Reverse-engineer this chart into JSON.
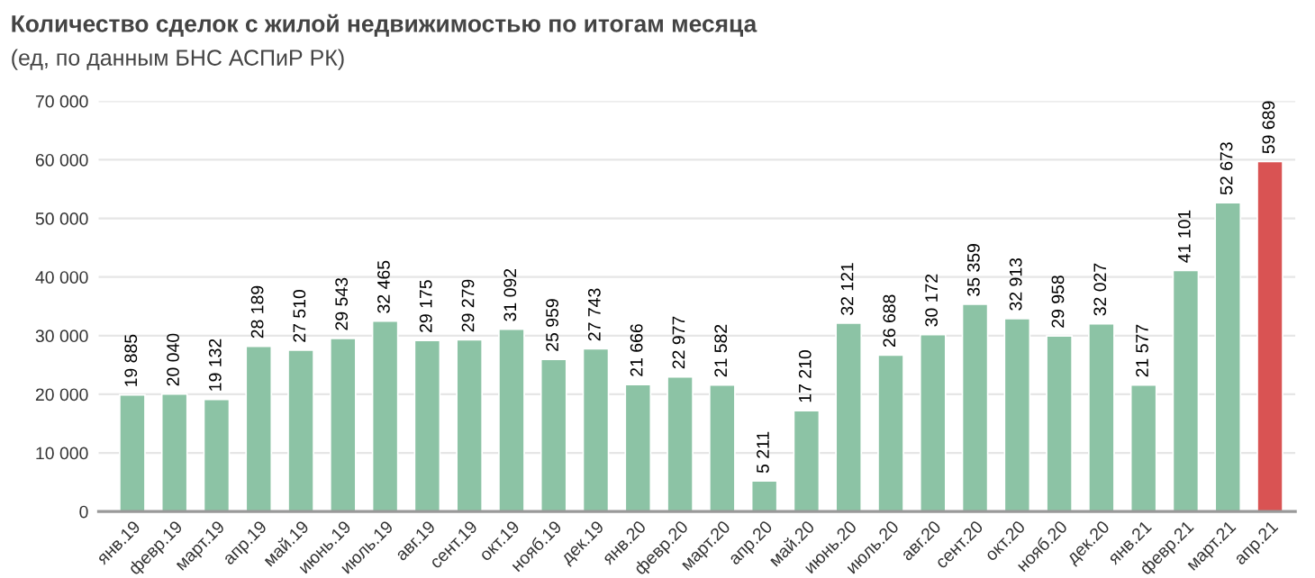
{
  "chart_data": {
    "type": "bar",
    "title": "Количество сделок с жилой недвижимостью по итогам месяца",
    "subtitle": "(ед, по данным БНС АСПиР РК)",
    "categories": [
      "янв.19",
      "февр.19",
      "март.19",
      "апр.19",
      "май.19",
      "июнь.19",
      "июль.19",
      "авг.19",
      "сент.19",
      "окт.19",
      "нояб.19",
      "дек.19",
      "янв.20",
      "февр.20",
      "март.20",
      "апр.20",
      "май.20",
      "июнь.20",
      "июль.20",
      "авг.20",
      "сент.20",
      "окт.20",
      "нояб.20",
      "дек.20",
      "янв.21",
      "февр.21",
      "март.21",
      "апр.21"
    ],
    "values": [
      19885,
      20040,
      19132,
      28189,
      27510,
      29543,
      32465,
      29175,
      29279,
      31092,
      25959,
      27743,
      21666,
      22977,
      21582,
      5211,
      17210,
      32121,
      26688,
      30172,
      35359,
      32913,
      29958,
      32027,
      21577,
      41101,
      52673,
      59689
    ],
    "value_labels": [
      "19 885",
      "20 040",
      "19 132",
      "28 189",
      "27 510",
      "29 543",
      "32 465",
      "29 175",
      "29 279",
      "31 092",
      "25 959",
      "27 743",
      "21 666",
      "22 977",
      "21 582",
      "5 211",
      "17 210",
      "32 121",
      "26 688",
      "30 172",
      "35 359",
      "32 913",
      "29 958",
      "32 027",
      "21 577",
      "41 101",
      "52 673",
      "59 689"
    ],
    "colors": [
      "#8cc3a5",
      "#8cc3a5",
      "#8cc3a5",
      "#8cc3a5",
      "#8cc3a5",
      "#8cc3a5",
      "#8cc3a5",
      "#8cc3a5",
      "#8cc3a5",
      "#8cc3a5",
      "#8cc3a5",
      "#8cc3a5",
      "#8cc3a5",
      "#8cc3a5",
      "#8cc3a5",
      "#8cc3a5",
      "#8cc3a5",
      "#8cc3a5",
      "#8cc3a5",
      "#8cc3a5",
      "#8cc3a5",
      "#8cc3a5",
      "#8cc3a5",
      "#8cc3a5",
      "#8cc3a5",
      "#8cc3a5",
      "#8cc3a5",
      "#d95353"
    ],
    "ylim": [
      0,
      70000
    ],
    "yticks": [
      0,
      {
        "value": 10000,
        "label": "10 000"
      },
      {
        "value": 20000,
        "label": "20 000"
      },
      {
        "value": 30000,
        "label": "30 000"
      },
      {
        "value": 40000,
        "label": "40 000"
      },
      {
        "value": 50000,
        "label": "50 000"
      },
      {
        "value": 60000,
        "label": "60 000"
      },
      {
        "value": 70000,
        "label": "70 000"
      }
    ],
    "grid": "y"
  }
}
